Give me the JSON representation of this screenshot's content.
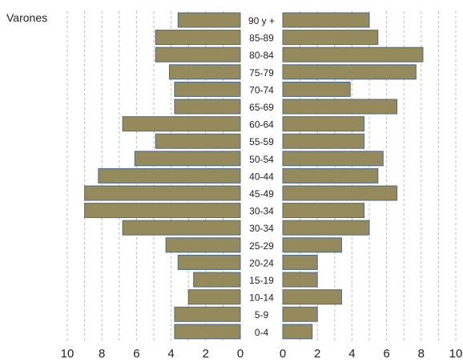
{
  "chart_data": {
    "type": "bar",
    "orientation": "horizontal",
    "title": "Varones",
    "categories": [
      "90 y +",
      "85-89",
      "80-84",
      "75-79",
      "70-74",
      "65-69",
      "60-64",
      "55-59",
      "50-54",
      "40-44",
      "45-49",
      "30-34",
      "30-34",
      "25-29",
      "20-24",
      "15-19",
      "10-14",
      "5-9",
      "0-4"
    ],
    "series": [
      {
        "values": [
          3.6,
          4.9,
          4.9,
          4.1,
          3.8,
          3.8,
          6.8,
          4.9,
          6.1,
          8.2,
          9.0,
          9.0,
          6.8,
          4.3,
          3.6,
          2.7,
          3.0,
          3.8,
          3.8
        ]
      },
      {
        "values": [
          5.0,
          5.5,
          8.1,
          7.7,
          3.9,
          6.6,
          4.7,
          4.7,
          5.8,
          5.5,
          6.6,
          4.7,
          5.0,
          3.4,
          2.0,
          2.0,
          3.4,
          2.0,
          1.7
        ]
      }
    ],
    "left_axis_ticks": [
      "10",
      "8",
      "6",
      "4",
      "2",
      "0"
    ],
    "right_axis_ticks": [
      "0",
      "2",
      "4",
      "6",
      "8",
      "10"
    ],
    "xlim": [
      0,
      10
    ],
    "grid": "vertical-dashed",
    "bar_fill": "#958a5c",
    "bar_stroke": "#4a6a8a"
  }
}
